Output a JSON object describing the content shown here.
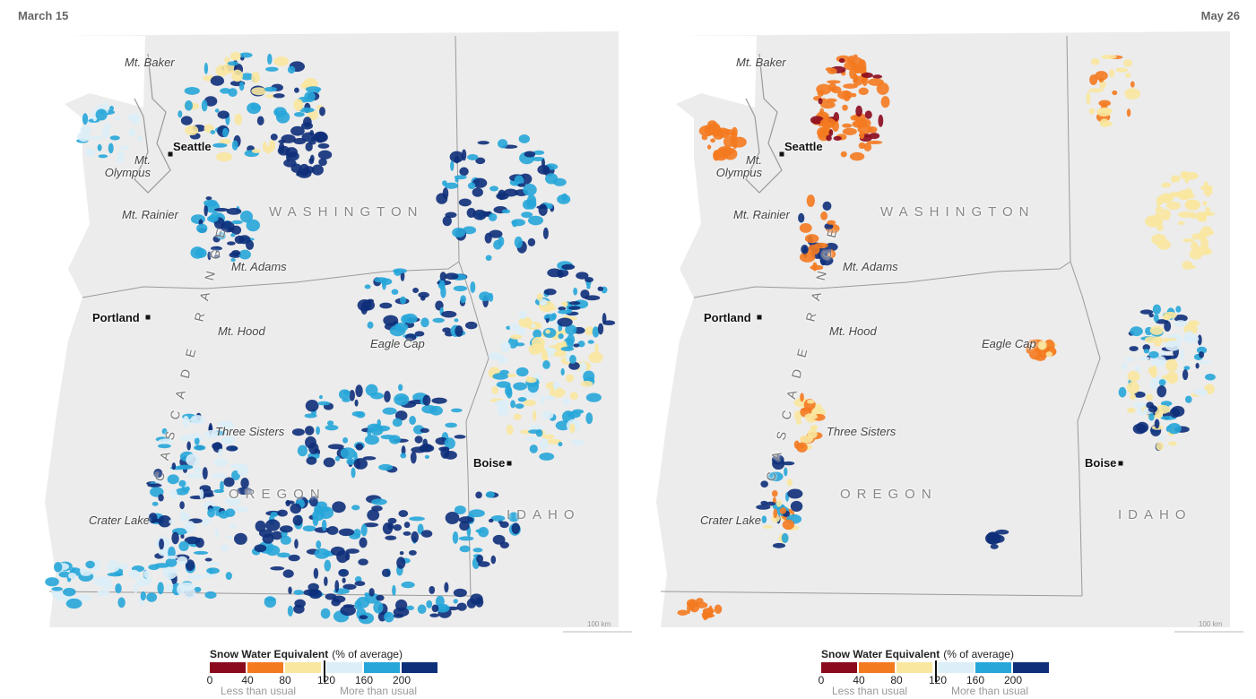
{
  "panels": [
    {
      "date": "March 15",
      "places": [
        "Mt. Baker",
        "Seattle",
        "Mt. Olympus",
        "Mt. Rainier",
        "Mt. Adams",
        "Portland",
        "Mt. Hood",
        "Eagle Cap",
        "Three Sisters",
        "Crater Lake",
        "Boise"
      ],
      "states": [
        "WASHINGTON",
        "OREGON",
        "IDAHO"
      ],
      "range": "CASCADE RANGE",
      "scale": "100 km"
    },
    {
      "date": "May 26",
      "places": [
        "Mt. Baker",
        "Seattle",
        "Mt. Olympus",
        "Mt. Rainier",
        "Mt. Adams",
        "Portland",
        "Mt. Hood",
        "Eagle Cap",
        "Three Sisters",
        "Crater Lake",
        "Boise"
      ],
      "states": [
        "WASHINGTON",
        "OREGON",
        "IDAHO"
      ],
      "range": "CASCADE RANGE",
      "scale": "100 km"
    }
  ],
  "legend": {
    "title": "Snow Water Equivalent",
    "unit": "(% of average)",
    "ticks": [
      "0",
      "40",
      "80",
      "120",
      "160",
      "200"
    ],
    "colors": [
      "#8b0a1e",
      "#f47a20",
      "#f9e79f",
      "#dceef8",
      "#27a6d9",
      "#0e2f7a"
    ],
    "low": "Less than usual",
    "high": "More than usual"
  }
}
